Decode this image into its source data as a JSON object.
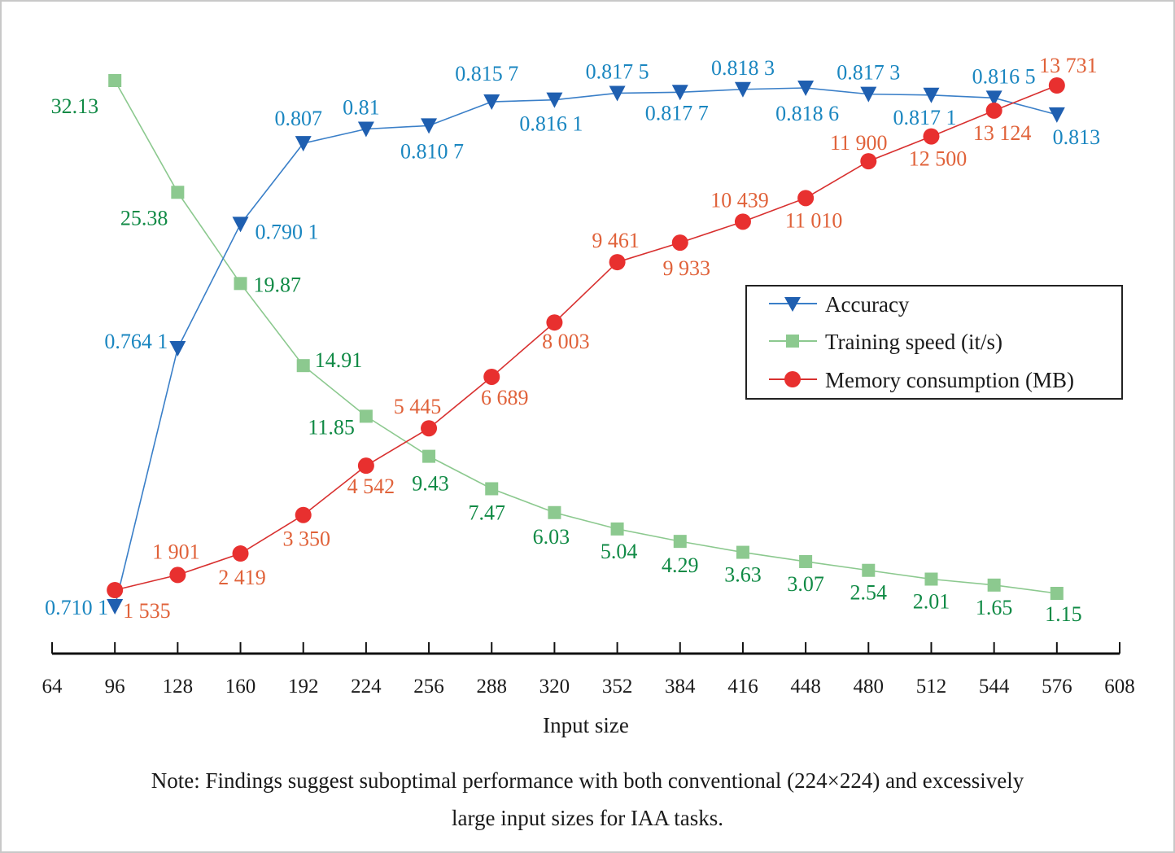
{
  "chart_data": {
    "type": "line",
    "title": "",
    "xlabel": "Input size",
    "ylabel": "",
    "x": [
      96,
      128,
      160,
      192,
      224,
      256,
      288,
      320,
      352,
      384,
      416,
      448,
      480,
      512,
      544,
      576
    ],
    "x_ticks": [
      "64",
      "96",
      "128",
      "160",
      "192",
      "224",
      "256",
      "288",
      "320",
      "352",
      "384",
      "416",
      "448",
      "480",
      "512",
      "544",
      "576",
      "608"
    ],
    "xlim": [
      64,
      608
    ],
    "grid": false,
    "legend_position": "center-right",
    "series": [
      {
        "name": "Accuracy",
        "marker": "triangle-down",
        "color": "#1f5fb0",
        "label_color": "#1a86c0",
        "values": [
          0.7101,
          0.7641,
          0.7901,
          0.807,
          0.81,
          0.8107,
          0.8157,
          0.8161,
          0.8175,
          0.8177,
          0.8183,
          0.8186,
          0.8173,
          0.8171,
          0.8165,
          0.813
        ],
        "labels": [
          "0.710 1",
          "0.764 1",
          "0.790 1",
          "0.807",
          "0.81",
          "0.810 7",
          "0.815 7",
          "0.816 1",
          "0.817 5",
          "0.817 7",
          "0.818 3",
          "0.818 6",
          "0.817 3",
          "0.817 1",
          "0.816 5",
          "0.813"
        ]
      },
      {
        "name": "Training speed (it/s)",
        "marker": "square",
        "color": "#8cc98f",
        "label_color": "#108a45",
        "values": [
          32.13,
          25.38,
          19.87,
          14.91,
          11.85,
          9.43,
          7.47,
          6.03,
          5.04,
          4.29,
          3.63,
          3.07,
          2.54,
          2.01,
          1.65,
          1.15
        ],
        "labels": [
          "32.13",
          "25.38",
          "19.87",
          "14.91",
          "11.85",
          "9.43",
          "7.47",
          "6.03",
          "5.04",
          "4.29",
          "3.63",
          "3.07",
          "2.54",
          "2.01",
          "1.65",
          "1.15"
        ]
      },
      {
        "name": "Memory consumption (MB)",
        "marker": "circle",
        "color": "#e8302f",
        "label_color": "#e0623a",
        "values": [
          1535,
          1901,
          2419,
          3350,
          4542,
          5445,
          6689,
          8003,
          9461,
          9933,
          10439,
          11010,
          11900,
          12500,
          13124,
          13731
        ],
        "labels": [
          "1 535",
          "1 901",
          "2 419",
          "3 350",
          "4 542",
          "5 445",
          "6 689",
          "8 003",
          "9 461",
          "9 933",
          "10 439",
          "11 010",
          "11 900",
          "12 500",
          "13 124",
          "13 731"
        ]
      }
    ]
  },
  "legend": {
    "items": [
      "Accuracy",
      "Training speed (it/s)",
      "Memory consumption (MB)"
    ]
  },
  "note": {
    "line1": "Note: Findings suggest suboptimal performance with both conventional (224×224) and excessively",
    "line2": "large input sizes for IAA tasks."
  }
}
